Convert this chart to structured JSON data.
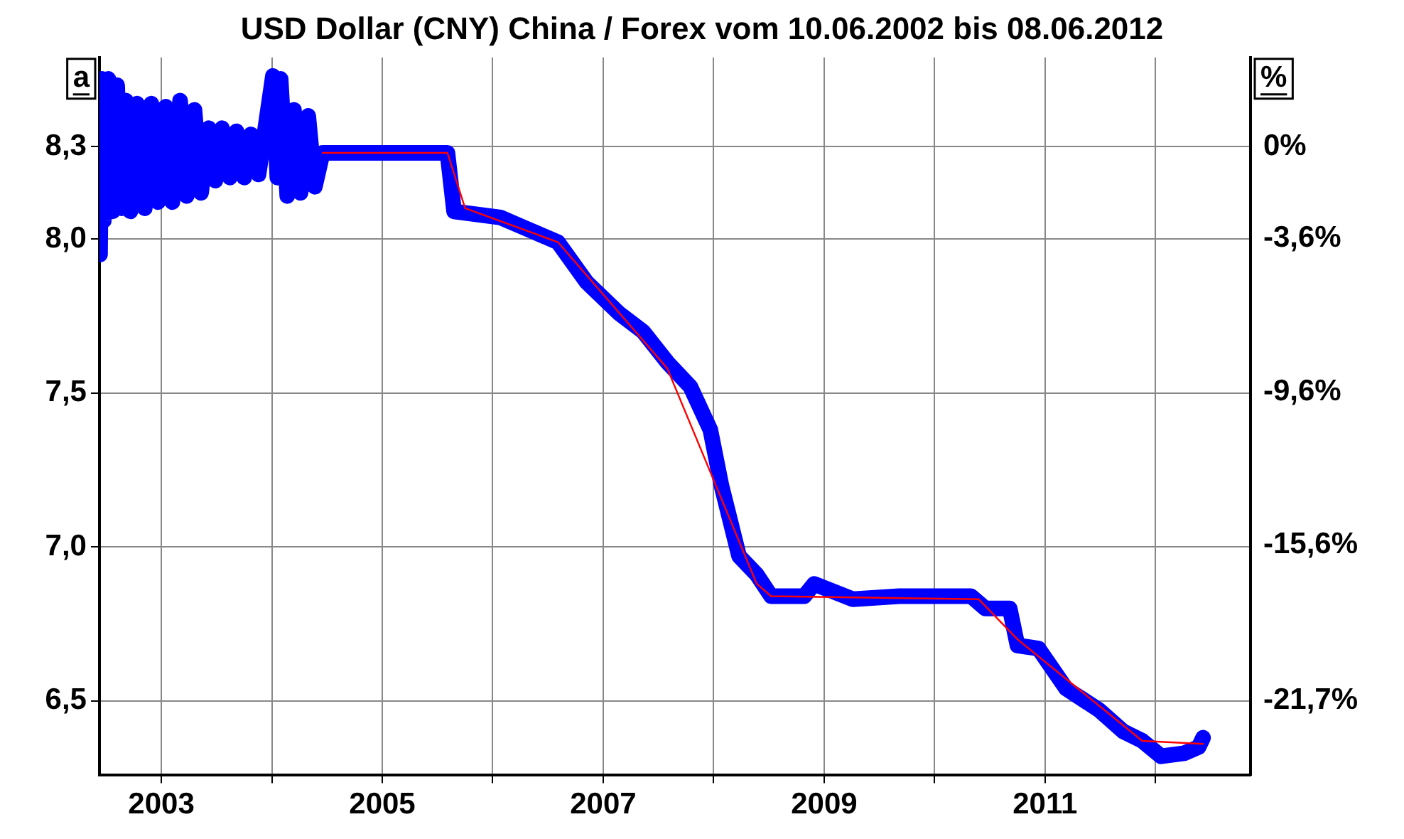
{
  "chart_data": {
    "type": "line",
    "title": "USD Dollar (CNY) China / Forex vom 10.06.2002 bis 08.06.2012",
    "ylabel": "a",
    "y2label": "%",
    "series": [
      {
        "color": "#0000ff",
        "x": [
          2002.445,
          2002.46,
          2002.48,
          2002.52,
          2002.56,
          2002.6,
          2002.64,
          2002.68,
          2002.72,
          2002.78,
          2002.85,
          2002.91,
          2002.97,
          2003.04,
          2003.1,
          2003.17,
          2003.23,
          2003.3,
          2003.36,
          2003.43,
          2003.49,
          2003.55,
          2003.62,
          2003.68,
          2003.75,
          2003.81,
          2003.88,
          2004.01,
          2004.05,
          2004.08,
          2004.14,
          2004.2,
          2004.26,
          2004.33,
          2004.39,
          2004.46,
          2005.59,
          2005.65,
          2006.07,
          2006.33,
          2006.59,
          2006.85,
          2007.14,
          2007.36,
          2007.58,
          2007.79,
          2007.97,
          2008.07,
          2008.23,
          2008.39,
          2008.52,
          2008.82,
          2008.91,
          2009.26,
          2009.68,
          2010.33,
          2010.46,
          2010.68,
          2010.75,
          2010.94,
          2011.19,
          2011.49,
          2011.71,
          2011.88,
          2012.05,
          2012.26,
          2012.39,
          2012.43
        ],
        "values": [
          7.95,
          8.52,
          8.06,
          8.52,
          8.09,
          8.5,
          8.1,
          8.45,
          8.09,
          8.44,
          8.1,
          8.44,
          8.12,
          8.43,
          8.12,
          8.45,
          8.14,
          8.42,
          8.15,
          8.36,
          8.19,
          8.36,
          8.2,
          8.35,
          8.2,
          8.34,
          8.21,
          8.53,
          8.2,
          8.52,
          8.14,
          8.42,
          8.15,
          8.4,
          8.17,
          8.28,
          8.28,
          8.09,
          8.07,
          8.03,
          7.99,
          7.86,
          7.76,
          7.7,
          7.6,
          7.52,
          7.38,
          7.2,
          6.97,
          6.91,
          6.84,
          6.84,
          6.88,
          6.83,
          6.84,
          6.84,
          6.8,
          6.8,
          6.68,
          6.67,
          6.54,
          6.47,
          6.4,
          6.37,
          6.32,
          6.33,
          6.35,
          6.38
        ]
      },
      {
        "color": "#ff0000",
        "x": [
          2004.46,
          2005.59,
          2005.75,
          2006.59,
          2007.58,
          2008.39,
          2008.52,
          2010.4,
          2010.75,
          2011.88,
          2012.43
        ],
        "values": [
          8.28,
          8.28,
          8.1,
          7.99,
          7.58,
          6.88,
          6.84,
          6.83,
          6.7,
          6.37,
          6.36
        ]
      }
    ],
    "xlim": [
      2002.44,
      2012.86
    ],
    "xticks": [
      2003,
      {
        "value": 2004,
        "label": null
      },
      2005,
      {
        "value": 2006,
        "label": null
      },
      2007,
      {
        "value": 2008,
        "label": null
      },
      2009,
      {
        "value": 2010,
        "label": null
      },
      2011,
      {
        "value": 2012,
        "label": null
      }
    ],
    "ylim": [
      6.26,
      8.59
    ],
    "yticks": [
      {
        "value": 6.5,
        "label": "6,5"
      },
      {
        "value": 7.0,
        "label": "7,0"
      },
      {
        "value": 7.5,
        "label": "7,5"
      },
      {
        "value": 8.0,
        "label": "8,0"
      },
      {
        "value": 8.3,
        "label": "8,3"
      }
    ],
    "y2lim": [
      -24.6,
      3.5
    ],
    "y2ticks": [
      {
        "value": -21.7,
        "label": "-21,7%"
      },
      {
        "value": -15.6,
        "label": "-15,6%"
      },
      {
        "value": -9.6,
        "label": "-9,6%"
      },
      {
        "value": -3.6,
        "label": "-3,6%"
      },
      {
        "value": 0,
        "label": "0%"
      }
    ],
    "grid": true,
    "legend": false,
    "marker": "none",
    "line_style": "solid"
  }
}
